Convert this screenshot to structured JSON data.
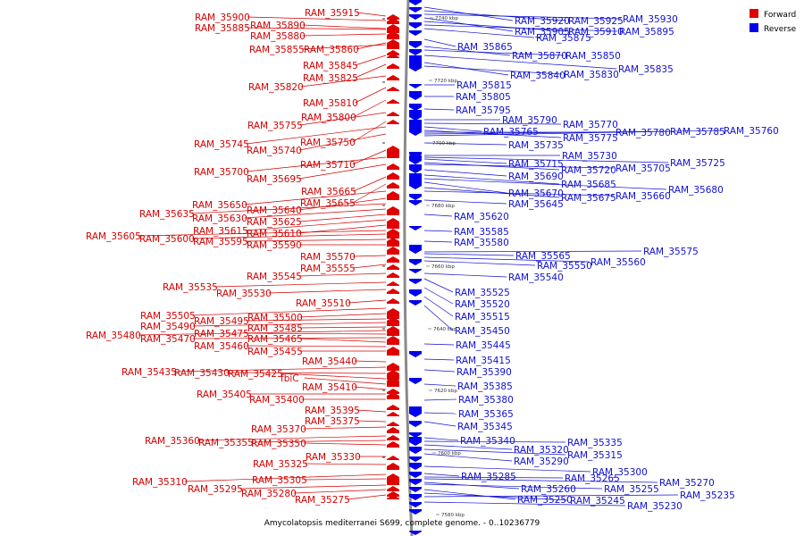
{
  "caption": "Amycolatopsis mediterranei S699, complete genome. - 0..10236779",
  "legend": [
    {
      "label": "Forward",
      "color": "#e00000"
    },
    {
      "label": "Reverse",
      "color": "#0000ee"
    }
  ],
  "colors": {
    "forward": "#e00000",
    "reverse": "#0000ee",
    "forward_label": "#d40000",
    "reverse_label": "#1010d0"
  },
  "scale_ticks": [
    "7740 kbp",
    "7720 kbp",
    "7700 kbp",
    "7680 kbp",
    "7660 kbp",
    "7640 kbp",
    "7620 kbp",
    "7600 kbp",
    "7580 kbp"
  ],
  "forward_genes": [
    "RAM_35915",
    "RAM_35900",
    "RAM_35890",
    "RAM_35885",
    "RAM_35880",
    "RAM_35860",
    "RAM_35855",
    "RAM_35845",
    "RAM_35825",
    "RAM_35820",
    "RAM_35810",
    "RAM_35800",
    "RAM_35755",
    "RAM_35750",
    "RAM_35745",
    "RAM_35740",
    "RAM_35710",
    "RAM_35700",
    "RAM_35695",
    "RAM_35665",
    "RAM_35655",
    "RAM_35650",
    "RAM_35640",
    "RAM_35635",
    "RAM_35630",
    "RAM_35625",
    "RAM_35615",
    "RAM_35610",
    "RAM_35605",
    "RAM_35600",
    "RAM_35595",
    "RAM_35590",
    "RAM_35570",
    "RAM_35555",
    "RAM_35545",
    "RAM_35535",
    "RAM_35530",
    "RAM_35510",
    "RAM_35505",
    "RAM_35500",
    "RAM_35495",
    "RAM_35490",
    "RAM_35485",
    "RAM_35480",
    "RAM_35475",
    "RAM_35470",
    "RAM_35465",
    "RAM_35460",
    "RAM_35455",
    "RAM_35440",
    "RAM_35435",
    "RAM_35430",
    "RAM_35425",
    "fbiC",
    "RAM_35410",
    "RAM_35405",
    "RAM_35400",
    "RAM_35395",
    "RAM_35375",
    "RAM_35370",
    "RAM_35360",
    "RAM_35355",
    "RAM_35350",
    "RAM_35330",
    "RAM_35325",
    "RAM_35310",
    "RAM_35305",
    "RAM_35295",
    "RAM_35280",
    "RAM_35275"
  ],
  "reverse_genes": [
    "RAM_35920",
    "RAM_35925",
    "RAM_35930",
    "RAM_35905",
    "RAM_35910",
    "RAM_35895",
    "RAM_35875",
    "RAM_35865",
    "RAM_35870",
    "RAM_35850",
    "RAM_35835",
    "RAM_35840",
    "RAM_35830",
    "RAM_35815",
    "RAM_35805",
    "RAM_35795",
    "RAM_35790",
    "RAM_35770",
    "RAM_35765",
    "RAM_35775",
    "RAM_35780",
    "RAM_35785",
    "RAM_35760",
    "RAM_35735",
    "RAM_35730",
    "RAM_35725",
    "RAM_35715",
    "RAM_35720",
    "RAM_35705",
    "RAM_35690",
    "RAM_35685",
    "RAM_35680",
    "RAM_35670",
    "RAM_35675",
    "RAM_35660",
    "RAM_35645",
    "RAM_35620",
    "RAM_35585",
    "RAM_35580",
    "RAM_35575",
    "RAM_35565",
    "RAM_35560",
    "RAM_35550",
    "RAM_35540",
    "RAM_35525",
    "RAM_35520",
    "RAM_35515",
    "RAM_35450",
    "RAM_35445",
    "RAM_35415",
    "RAM_35390",
    "RAM_35385",
    "RAM_35380",
    "RAM_35365",
    "RAM_35345",
    "RAM_35340",
    "RAM_35335",
    "RAM_35320",
    "RAM_35315",
    "RAM_35290",
    "RAM_35300",
    "RAM_35285",
    "RAM_35265",
    "RAM_35270",
    "RAM_35260",
    "RAM_35255",
    "RAM_35250",
    "RAM_35245",
    "RAM_35235",
    "RAM_35230"
  ]
}
